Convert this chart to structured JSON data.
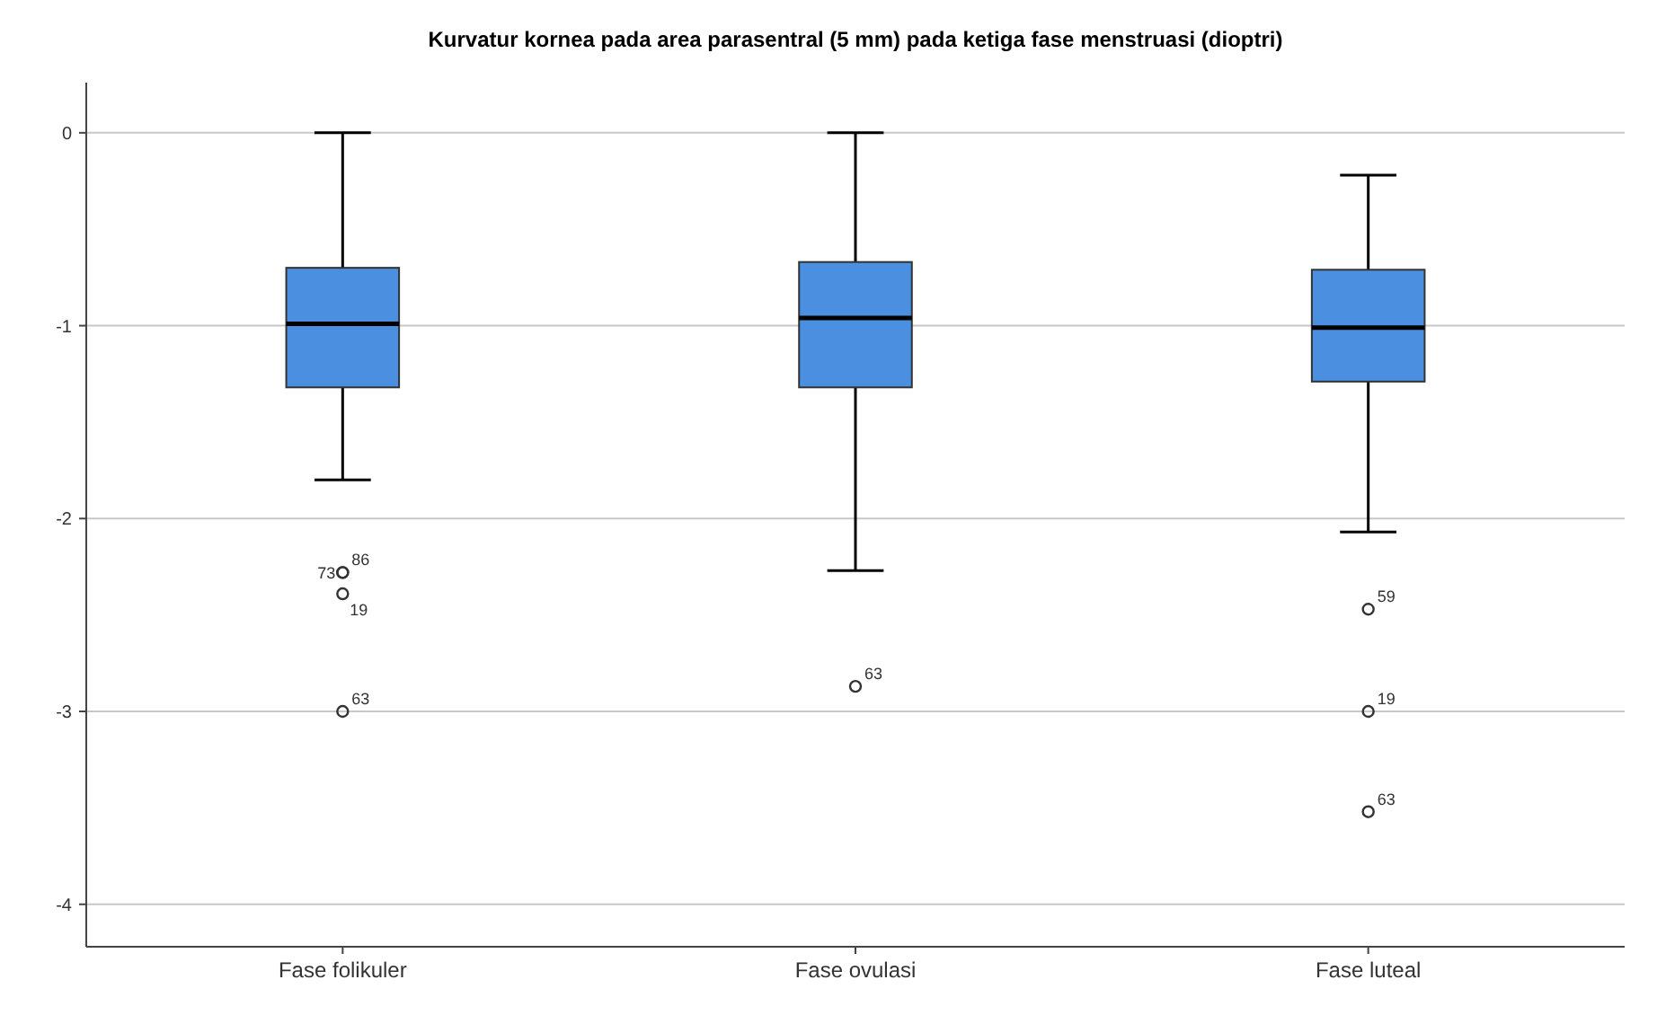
{
  "chart_data": {
    "type": "box",
    "title": "Kurvatur kornea pada area parasentral (5 mm) pada ketiga fase menstruasi (dioptri)",
    "categories": [
      "Fase folikuler",
      "Fase ovulasi",
      "Fase luteal"
    ],
    "color": "#4a8fe0",
    "boxes": [
      {
        "low": -1.8,
        "q1": -1.32,
        "median": -0.99,
        "q3": -0.7,
        "high": 0,
        "outliers": [
          -2.28,
          -2.28,
          -2.39,
          -3.0
        ]
      },
      {
        "low": -2.27,
        "q1": -1.32,
        "median": -0.96,
        "q3": -0.67,
        "high": 0,
        "outliers": [
          -2.87
        ]
      },
      {
        "low": -2.07,
        "q1": -1.29,
        "median": -1.01,
        "q3": -0.71,
        "high": -0.22,
        "outliers": [
          -2.47,
          -3.0,
          -3.52
        ]
      }
    ],
    "ylim": [
      -4.22,
      0.26
    ],
    "yticks": [
      0,
      -1,
      -2,
      -3,
      -4
    ],
    "grid": "y",
    "annotations": [
      "86",
      "73",
      "19",
      "63",
      "63",
      "59",
      "19",
      "63"
    ]
  }
}
